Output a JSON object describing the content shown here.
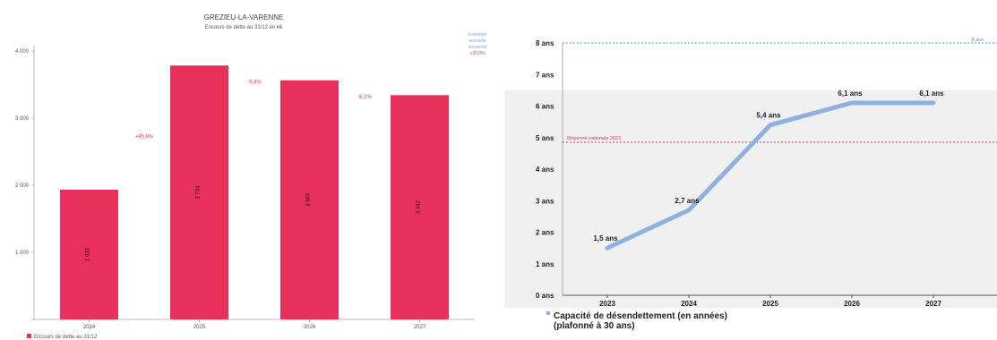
{
  "chart_data": [
    {
      "type": "bar",
      "title": "GREZIEU-LA-VARENNE",
      "subtitle": "Encours de dette au 31/12 en k€",
      "categories": [
        "2024",
        "2025",
        "2026",
        "2027"
      ],
      "series": [
        {
          "name": "Encours de dette au 31/12",
          "values": [
            1933,
            3784,
            3563,
            3342
          ],
          "color": "#e8315a"
        }
      ],
      "data_labels": [
        "1 933",
        "3 784",
        "3 563",
        "3 342"
      ],
      "variation_labels": [
        "+95,8%",
        "-5,8%",
        "-6,2%"
      ],
      "y_ticks": [
        0,
        1000,
        2000,
        3000,
        4000
      ],
      "y_tick_labels": [
        "",
        "1 000",
        "2 000",
        "3 000",
        "4 000"
      ],
      "ylim": [
        0,
        4000
      ],
      "side_legend": [
        "Evolution",
        "annuelle",
        "moyenne",
        "+20,0%"
      ],
      "legend_position": "bottom-left",
      "grid": false
    },
    {
      "type": "line",
      "title": "Capacité de désendettement (en années)",
      "subtitle": "(plafonné à 30 ans)",
      "x": [
        "2023",
        "2024",
        "2025",
        "2026",
        "2027"
      ],
      "series": [
        {
          "name": "",
          "values": [
            1.5,
            2.7,
            5.4,
            6.1,
            6.1
          ],
          "color": "#8fb1de"
        }
      ],
      "data_labels": [
        "1,5 ans",
        "2,7 ans",
        "5,4 ans",
        "6,1 ans",
        "6,1 ans"
      ],
      "y_ticks": [
        0,
        1,
        2,
        3,
        4,
        5,
        6,
        7,
        8
      ],
      "y_tick_labels": [
        "0 ans",
        "1 ans",
        "2 ans",
        "3 ans",
        "4 ans",
        "5 ans",
        "6 ans",
        "7 ans",
        "8 ans"
      ],
      "ylim": [
        0,
        8
      ],
      "reference_lines": [
        {
          "label": "Moyenne nationale 2022",
          "value": 4.85,
          "color": "#d23a5a"
        },
        {
          "label": "8 ans",
          "value": 8,
          "color": "#4a8fd8"
        }
      ],
      "grid": false
    }
  ]
}
